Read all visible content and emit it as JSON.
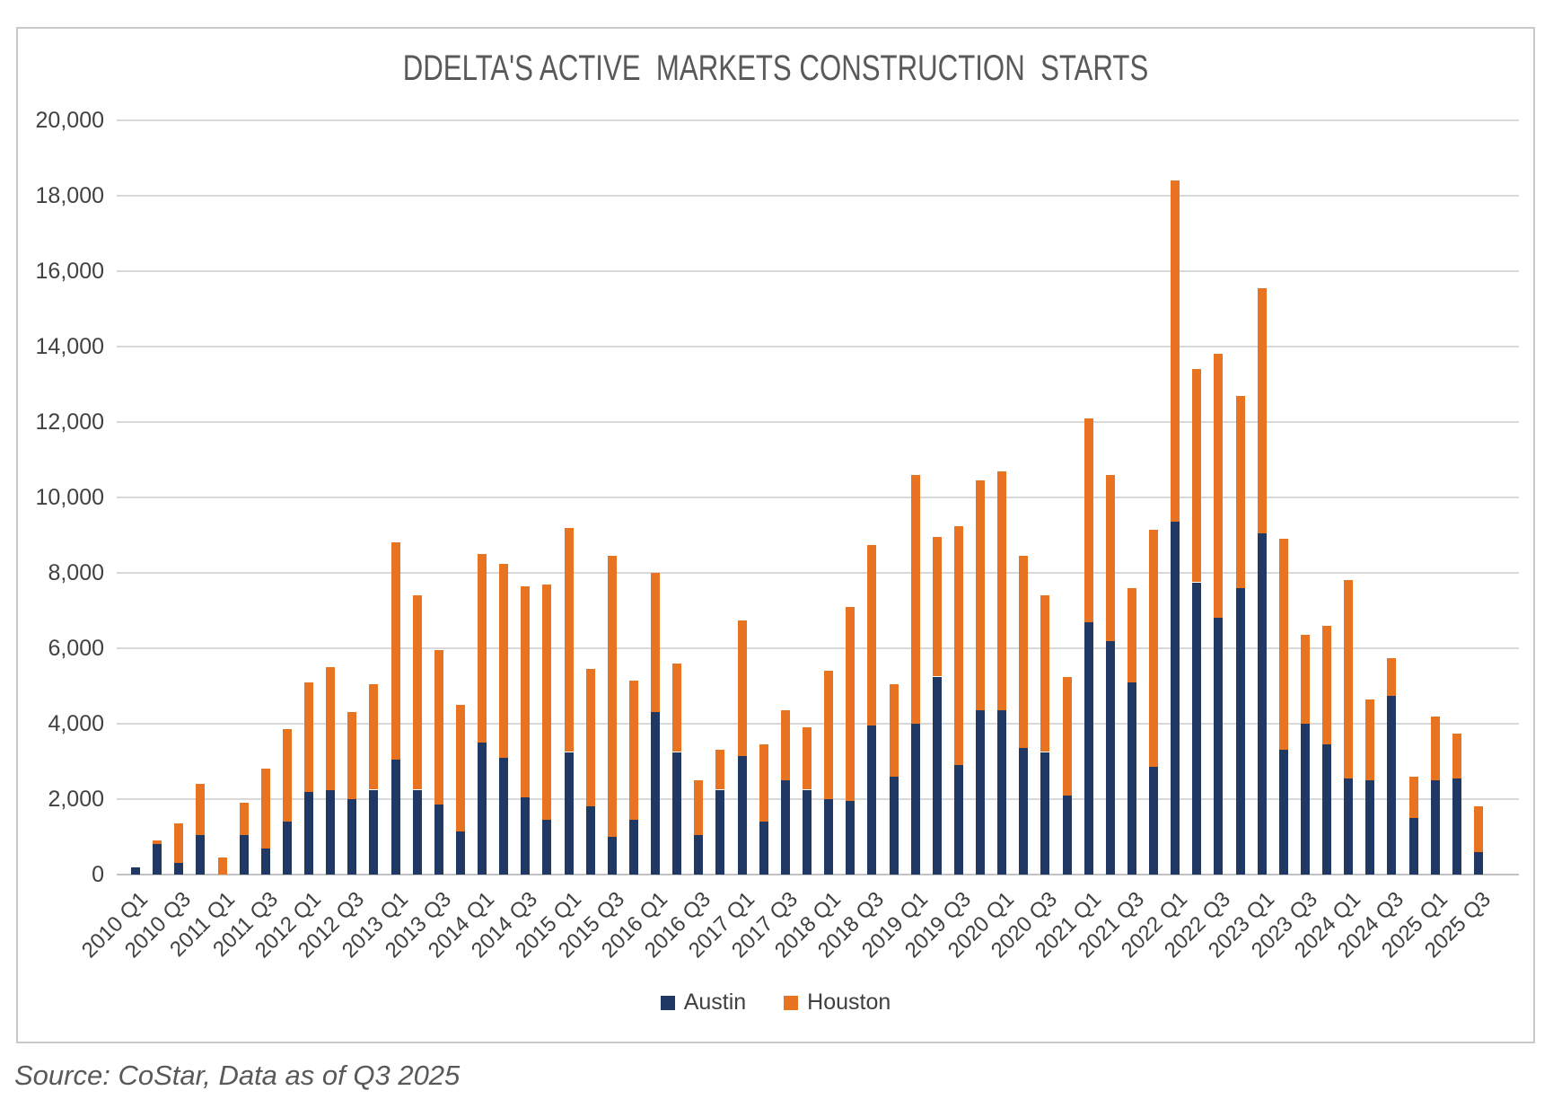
{
  "title": "DDELTA'S ACTIVE  MARKETS CONSTRUCTION  STARTS",
  "source_note": "Source: CoStar, Data as of Q3 2025",
  "colors": {
    "austin": "#1f3864",
    "houston": "#e87422",
    "gridline": "#d9d9d9",
    "axis_text": "#414141",
    "title_text": "#595959",
    "border": "#c9c9c9"
  },
  "legend": {
    "position": "bottom"
  },
  "chart_data": {
    "type": "bar",
    "stacked": true,
    "title": "DDELTA'S ACTIVE  MARKETS CONSTRUCTION  STARTS",
    "xlabel": "",
    "ylabel": "",
    "ylim": [
      0,
      20000
    ],
    "ytick_step": 2000,
    "grid": true,
    "legend_position": "bottom",
    "x_tick_every": 2,
    "categories": [
      "2010 Q1",
      "2010 Q2",
      "2010 Q3",
      "2010 Q4",
      "2011 Q1",
      "2011 Q2",
      "2011 Q3",
      "2011 Q4",
      "2012 Q1",
      "2012 Q2",
      "2012 Q3",
      "2012 Q4",
      "2013 Q1",
      "2013 Q2",
      "2013 Q3",
      "2013 Q4",
      "2014 Q1",
      "2014 Q2",
      "2014 Q3",
      "2014 Q4",
      "2015 Q1",
      "2015 Q2",
      "2015 Q3",
      "2015 Q4",
      "2016 Q1",
      "2016 Q2",
      "2016 Q3",
      "2016 Q4",
      "2017 Q1",
      "2017 Q2",
      "2017 Q3",
      "2017 Q4",
      "2018 Q1",
      "2018 Q2",
      "2018 Q3",
      "2018 Q4",
      "2019 Q1",
      "2019 Q2",
      "2019 Q3",
      "2019 Q4",
      "2020 Q1",
      "2020 Q2",
      "2020 Q3",
      "2020 Q4",
      "2021 Q1",
      "2021 Q2",
      "2021 Q3",
      "2021 Q4",
      "2022 Q1",
      "2022 Q2",
      "2022 Q3",
      "2022 Q4",
      "2023 Q1",
      "2023 Q2",
      "2023 Q3",
      "2023 Q4",
      "2024 Q1",
      "2024 Q2",
      "2024 Q3",
      "2024 Q4",
      "2025 Q1",
      "2025 Q2",
      "2025 Q3"
    ],
    "series": [
      {
        "name": "Austin",
        "color": "#1f3864",
        "values": [
          200,
          800,
          300,
          1050,
          0,
          1050,
          700,
          1400,
          2200,
          2250,
          2000,
          2250,
          3050,
          2250,
          1850,
          1150,
          3500,
          3100,
          2050,
          1450,
          3250,
          1800,
          1000,
          1450,
          4300,
          3250,
          1050,
          2250,
          3150,
          1400,
          2500,
          2250,
          2000,
          1950,
          3950,
          2600,
          4000,
          5250,
          2900,
          4350,
          4350,
          3350,
          3250,
          2100,
          6700,
          6200,
          5100,
          2850,
          9350,
          7750,
          6800,
          7600,
          9050,
          3300,
          4000,
          3450,
          2550,
          2500,
          4750,
          1500,
          2500,
          2550,
          600
        ]
      },
      {
        "name": "Houston",
        "color": "#e87422",
        "values": [
          0,
          100,
          1050,
          1350,
          450,
          850,
          2100,
          2450,
          2900,
          3250,
          2300,
          2800,
          5750,
          5150,
          4100,
          3350,
          5000,
          5150,
          5600,
          6250,
          5950,
          3650,
          7450,
          3700,
          3700,
          2350,
          1450,
          1050,
          3600,
          2050,
          1850,
          1650,
          3400,
          5150,
          4800,
          2450,
          6600,
          3700,
          6350,
          6100,
          6350,
          5100,
          4150,
          3150,
          5400,
          4400,
          2500,
          6300,
          9050,
          5650,
          7000,
          5100,
          6500,
          5600,
          2350,
          3150,
          5250,
          2150,
          1000,
          1100,
          1700,
          1200,
          1200
        ]
      }
    ]
  }
}
